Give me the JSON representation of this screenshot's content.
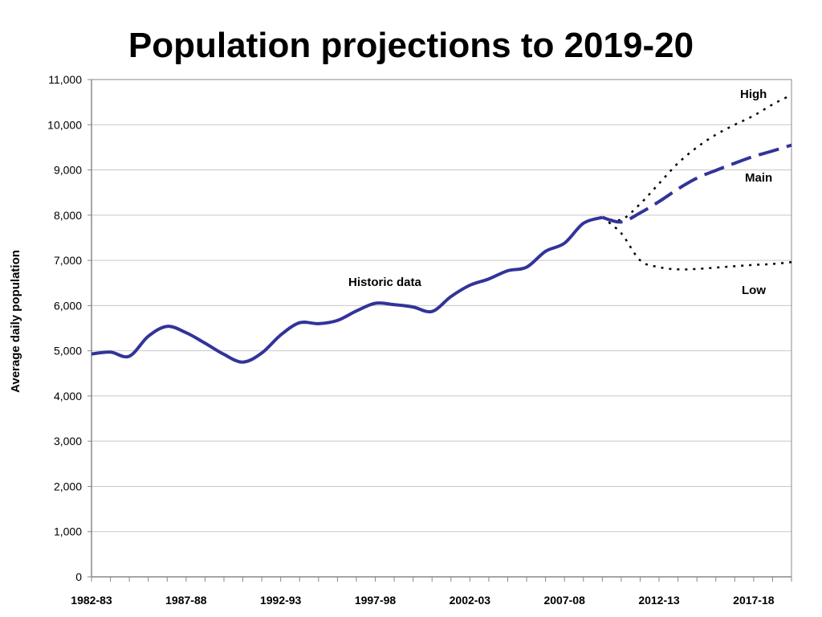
{
  "chart_data": {
    "type": "line",
    "title": "Population projections to 2019-20",
    "xlabel": "",
    "ylabel": "Average daily population",
    "ylim": [
      0,
      11000
    ],
    "yticks": [
      "0",
      "1,000",
      "2,000",
      "3,000",
      "4,000",
      "5,000",
      "6,000",
      "7,000",
      "8,000",
      "9,000",
      "10,000",
      "11,000"
    ],
    "x_tick_labels": [
      "1982-83",
      "1987-88",
      "1992-93",
      "1997-98",
      "2002-03",
      "2007-08",
      "2012-13",
      "2017-18"
    ],
    "periods": [
      "1982-83",
      "1983-84",
      "1984-85",
      "1985-86",
      "1986-87",
      "1987-88",
      "1988-89",
      "1989-90",
      "1990-91",
      "1991-92",
      "1992-93",
      "1993-94",
      "1994-95",
      "1995-96",
      "1996-97",
      "1997-98",
      "1998-99",
      "1999-00",
      "2000-01",
      "2001-02",
      "2002-03",
      "2003-04",
      "2004-05",
      "2005-06",
      "2006-07",
      "2007-08",
      "2008-09",
      "2009-10",
      "2010-11",
      "2011-12",
      "2012-13",
      "2013-14",
      "2014-15",
      "2015-16",
      "2016-17",
      "2017-18",
      "2018-19",
      "2019-20"
    ],
    "grid": true,
    "series": [
      {
        "name": "Historic data",
        "style": "solid",
        "color": "#333399",
        "start": "1982-83",
        "values": [
          4930,
          4970,
          4880,
          5320,
          5540,
          5400,
          5170,
          4920,
          4750,
          4950,
          5350,
          5620,
          5600,
          5670,
          5880,
          6050,
          6020,
          5970,
          5870,
          6200,
          6450,
          6590,
          6770,
          6850,
          7200,
          7380,
          7820,
          7950
        ]
      },
      {
        "name": "Main",
        "style": "dashed",
        "color": "#333399",
        "start": "2009-10",
        "values": [
          7950,
          7850,
          8050,
          8300,
          8580,
          8820,
          8990,
          9150,
          9300,
          9420,
          9550
        ]
      },
      {
        "name": "High",
        "style": "dotted",
        "color": "#000000",
        "start": "2009-10",
        "values": [
          7950,
          7900,
          8250,
          8700,
          9150,
          9500,
          9780,
          10000,
          10200,
          10450,
          10660
        ]
      },
      {
        "name": "Low",
        "style": "dotted",
        "color": "#000000",
        "start": "2009-10",
        "values": [
          7950,
          7600,
          7000,
          6850,
          6800,
          6810,
          6840,
          6870,
          6900,
          6920,
          6960
        ]
      }
    ],
    "annotations": [
      "Historic data",
      "High",
      "Main",
      "Low"
    ]
  }
}
